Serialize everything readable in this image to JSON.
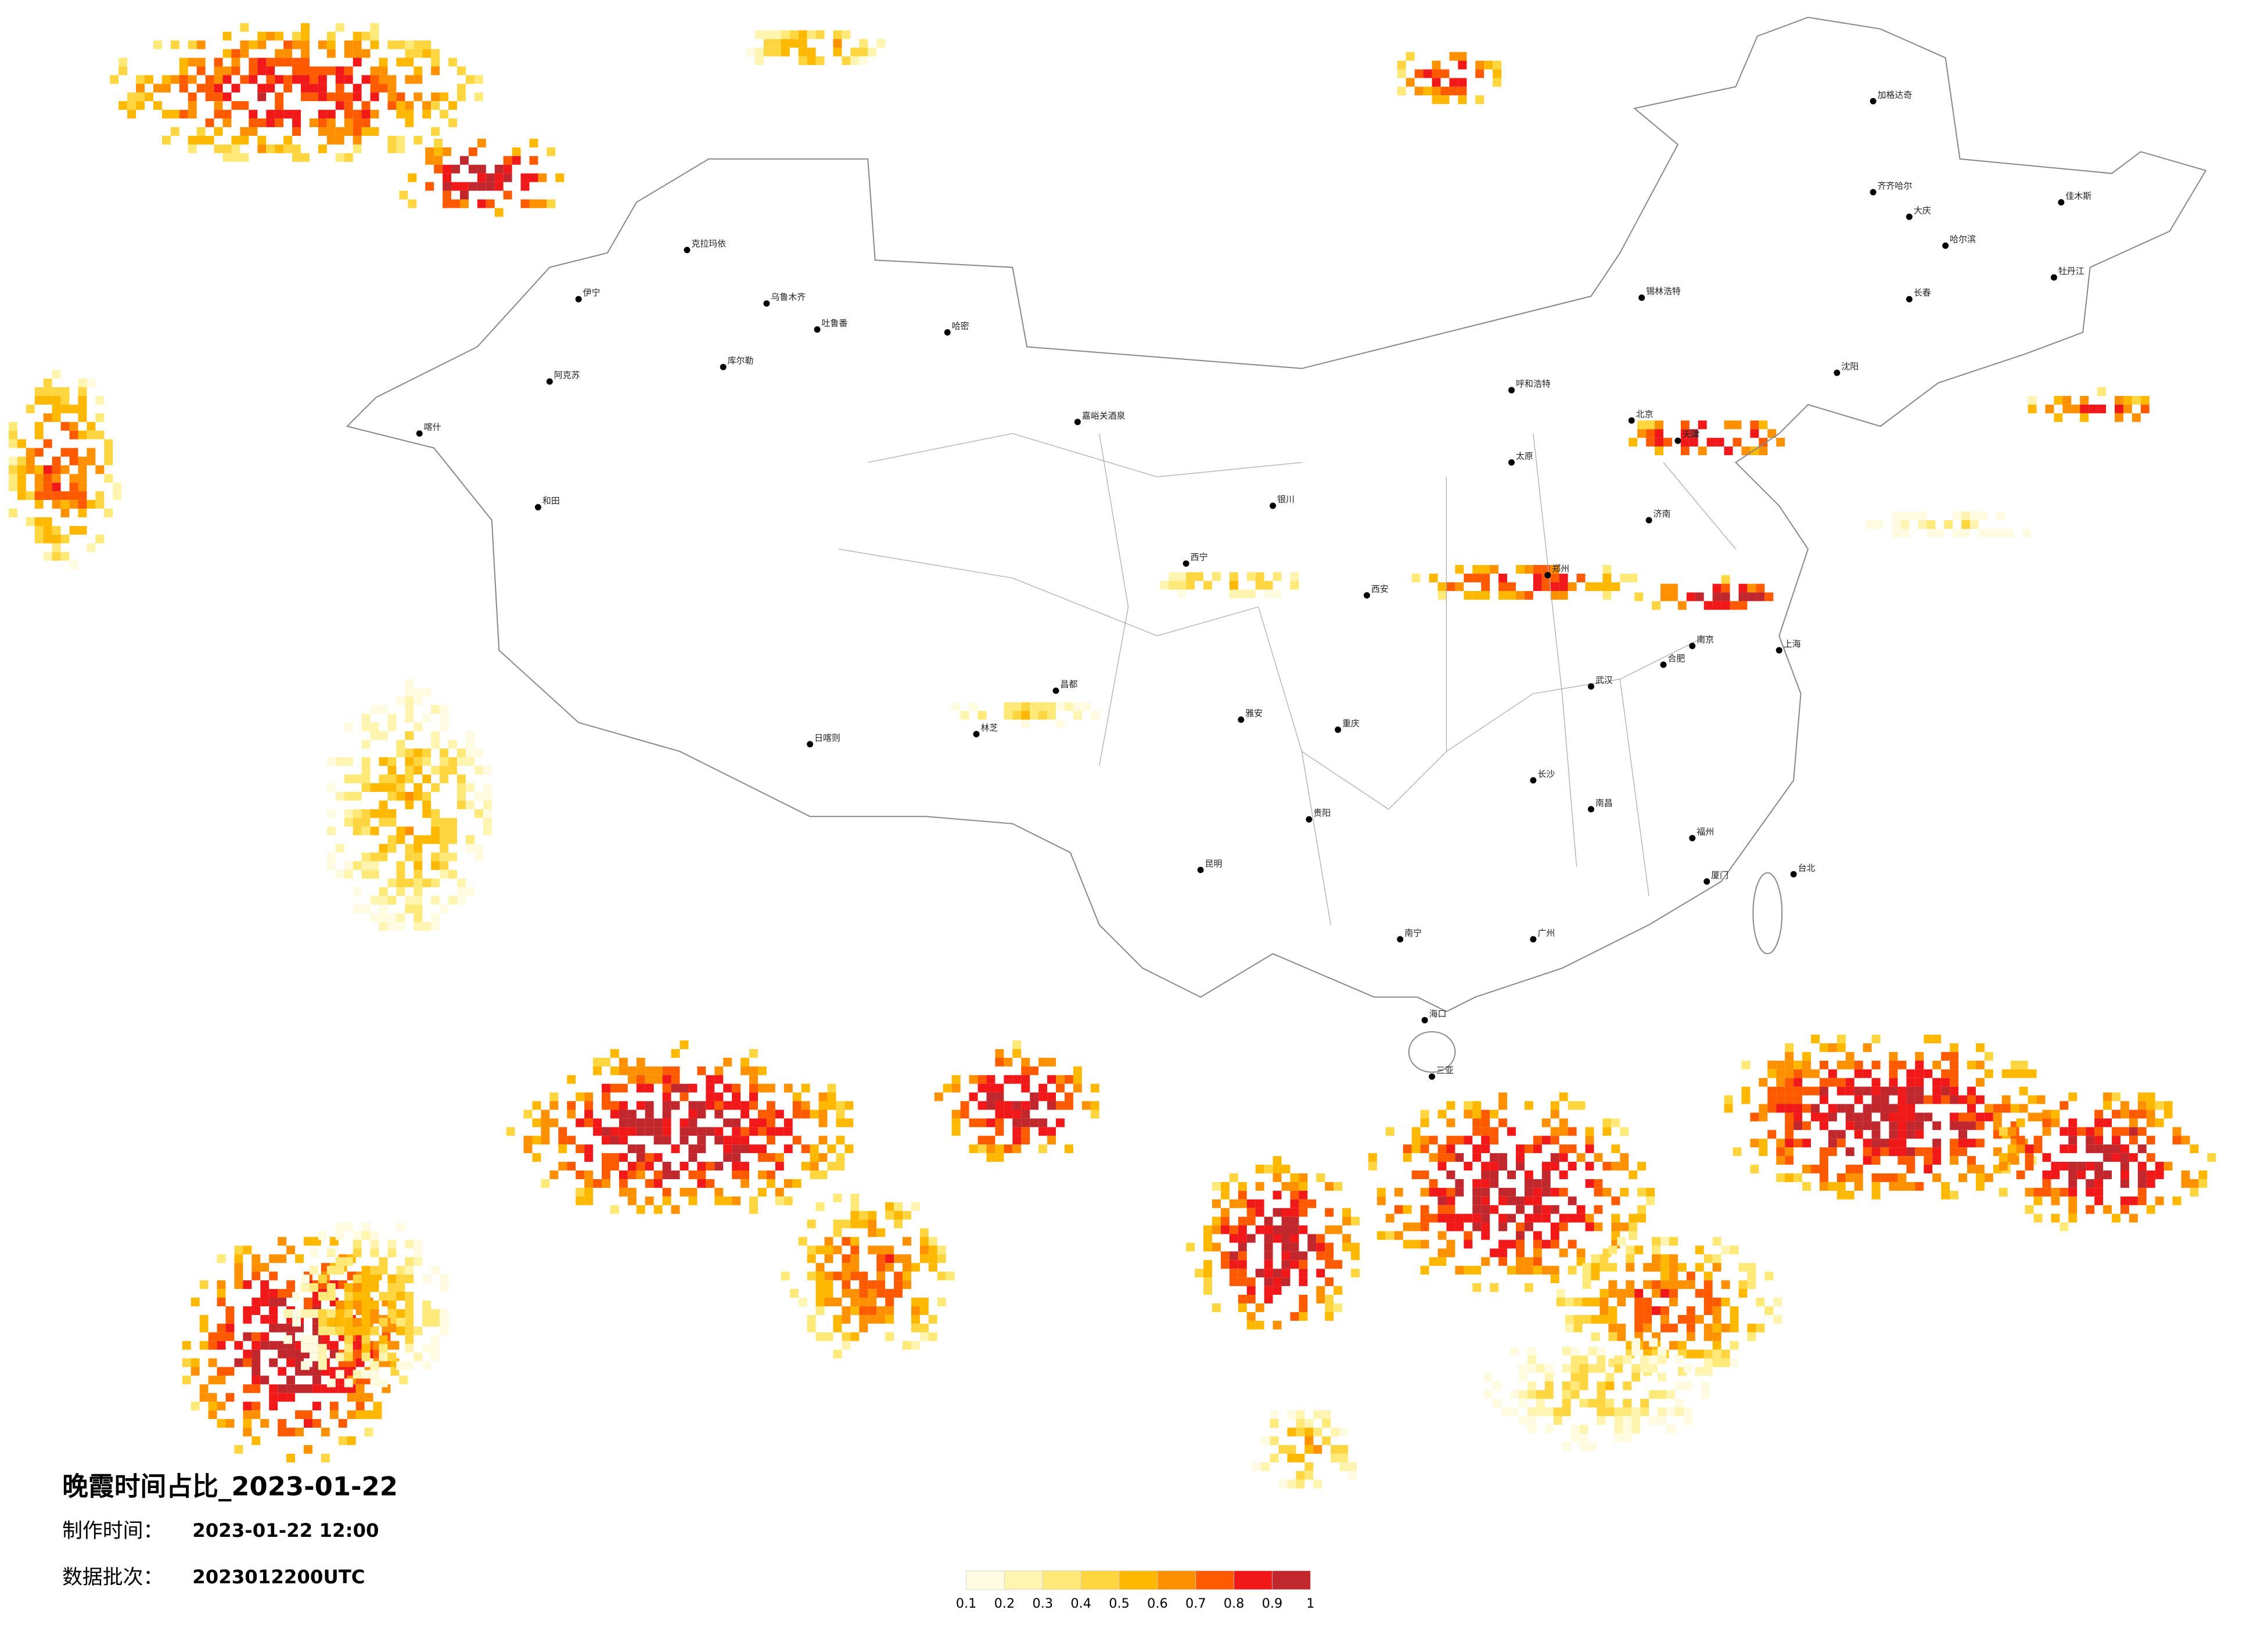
{
  "map": {
    "title": "晚霞时间占比_2023-01-22",
    "made_label": "制作时间：",
    "made_time": "2023-01-22 12:00",
    "batch_label": "数据批次：",
    "batch": "2023012200UTC"
  },
  "legend": {
    "colors": [
      "#fffbe0",
      "#fff4b0",
      "#ffe978",
      "#ffd640",
      "#ffb800",
      "#ff9000",
      "#ff5a00",
      "#f01818",
      "#c0282d"
    ],
    "ticks": [
      0.1,
      0.2,
      0.3,
      0.4,
      0.5,
      0.6,
      0.7,
      0.8,
      0.9,
      1
    ]
  },
  "cities": [
    "克拉玛依",
    "伊宁",
    "乌鲁木齐",
    "吐鲁番",
    "库尔勒",
    "阿克苏",
    "和田",
    "喀什",
    "哈密",
    "嘉峪关酒泉",
    "西宁",
    "日喀则",
    "林芝",
    "昌都",
    "雅安",
    "重庆",
    "昆明",
    "贵阳",
    "南宁",
    "海口",
    "三亚",
    "广州",
    "厦门",
    "台北",
    "上海",
    "南京",
    "长沙",
    "西安",
    "郑州",
    "济南",
    "太原",
    "呼和浩特",
    "沈阳",
    "长春",
    "哈尔滨",
    "齐齐哈尔",
    "加格达奇",
    "佳木斯",
    "牡丹江",
    "大庆",
    "锡林浩特",
    "银川",
    "北京",
    "天津",
    "南昌",
    "福州",
    "合肥",
    "武汉"
  ]
}
